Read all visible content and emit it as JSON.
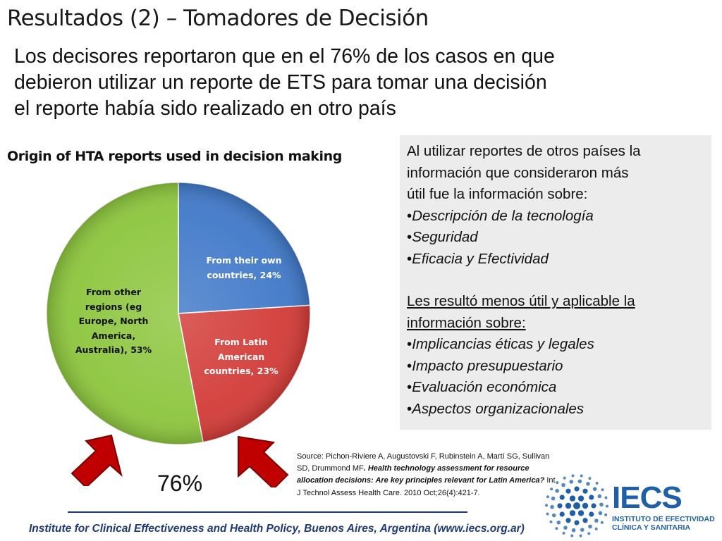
{
  "slide": {
    "title": "Resultados (2) – Tomadores de Decisión",
    "subtitle_lines": [
      "Los decisores reportaron que en el 76% de los casos en que",
      "debieron utilizar un reporte de ETS para tomar una decisión",
      "el reporte había sido realizado en otro país"
    ],
    "highlight_percent": "76%",
    "footer": "Institute for Clinical Effectiveness and Health Policy, Buenos Aires, Argentina (www.iecs.org.ar)"
  },
  "chart_data": {
    "type": "pie",
    "title": "Origin of HTA reports used in decision making",
    "slices": [
      {
        "label_lines": [
          "From their own",
          "countries, 24%"
        ],
        "value": 24,
        "color": "#3f78c8"
      },
      {
        "label_lines": [
          "From Latin",
          "American",
          "countries, 23%"
        ],
        "value": 23,
        "color": "#d23a36"
      },
      {
        "label_lines": [
          "From other",
          "regions (eg",
          "Europe, North",
          "America,",
          "Australia), 53%"
        ],
        "value": 53,
        "color": "#8cc53c"
      }
    ]
  },
  "infobox": {
    "intro_lines": [
      "Al utilizar reportes de otros países la",
      "información que consideraron más",
      "útil fue la información sobre:"
    ],
    "useful_items": [
      "Descripción de la tecnología",
      "Seguridad",
      "Eficacia y Efectividad"
    ],
    "less_useful_lines": [
      "Les resultó menos útil y aplicable la",
      "información sobre:"
    ],
    "less_useful_items": [
      "Implicancias éticas y legales",
      "Impacto presupuestario",
      "Evaluación económica",
      "Aspectos organizacionales"
    ]
  },
  "source": {
    "authors": "Source: Pichon-Riviere A, Augustovski F, Rubinstein A, Martí SG, Sullivan SD, Drummond MF",
    "article": ". Health technology assessment for resource allocation decisions: Are key principles relevant for Latin America?",
    "journal": " Int J Technol Assess Health Care. 2010 Oct;26(4):421-7."
  },
  "logo": {
    "name": "IECS",
    "sub_lines": [
      "INSTITUTO DE EFECTIVIDAD",
      "CLÍNICA Y SANITARIA"
    ],
    "color": "#1e5fa8"
  }
}
